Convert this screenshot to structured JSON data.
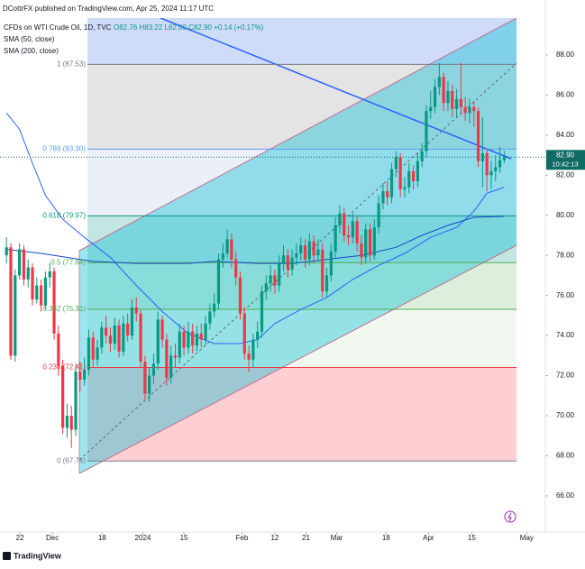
{
  "chart_data": {
    "type": "candlestick",
    "title": "DCottrFX published on TradingView.com, Apr 25, 2024 11:17 UTC",
    "symbol": "CFDs on WTI Crude Oil, 1D, TVC",
    "ohlc_text": "O82.76 H83.22 L82.60 C82.90 +0.14 (+0.17%)",
    "footer": "TradingView",
    "up_color": "#089981",
    "down_color": "#f23645",
    "xlim": [
      -1.5,
      124.5
    ],
    "ylim": [
      64.2,
      89.84
    ],
    "xticks": [
      {
        "value": 3.1,
        "label": "22"
      },
      {
        "value": 10.6,
        "label": "Dec"
      },
      {
        "value": 22.1,
        "label": "18"
      },
      {
        "value": 31.5,
        "label": "2024"
      },
      {
        "value": 41,
        "label": "15"
      },
      {
        "value": 54.4,
        "label": "Feb"
      },
      {
        "value": 62,
        "label": "12"
      },
      {
        "value": 69.2,
        "label": "21"
      },
      {
        "value": 76.3,
        "label": "Mar"
      },
      {
        "value": 87.7,
        "label": "18"
      },
      {
        "value": 97.5,
        "label": "Apr"
      },
      {
        "value": 107.5,
        "label": "15"
      },
      {
        "value": 120.2,
        "label": "May"
      }
    ],
    "yticks": [
      {
        "value": 88,
        "label": "88.00"
      },
      {
        "value": 86,
        "label": "86.00"
      },
      {
        "value": 84,
        "label": "84.00"
      },
      {
        "value": 82,
        "label": "82.00"
      },
      {
        "value": 80,
        "label": "80.00"
      },
      {
        "value": 78,
        "label": "78.00"
      },
      {
        "value": 76,
        "label": "76.00"
      },
      {
        "value": 74,
        "label": "74.00"
      },
      {
        "value": 72,
        "label": "72.00"
      },
      {
        "value": 70,
        "label": "70.00"
      },
      {
        "value": 68,
        "label": "68.00"
      },
      {
        "value": 66,
        "label": "66.00"
      }
    ],
    "open": [
      78.0,
      78.4,
      73.0,
      77.0,
      78.3,
      76.8,
      77.4,
      75.8,
      76.5,
      75.5,
      76.9,
      77.2,
      74.1,
      72.5,
      69.4,
      70.0,
      69.3,
      72.2,
      71.8,
      72.3,
      73.9,
      72.8,
      73.4,
      74.4,
      74.0,
      73.6,
      74.5,
      73.2,
      74.6,
      74.0,
      75.4,
      75.1,
      72.7,
      71.1,
      72.0,
      72.6,
      74.8,
      73.8,
      71.9,
      73.0,
      72.9,
      74.2,
      73.4,
      74.2,
      73.5,
      74.1,
      73.8,
      74.6,
      75.2,
      75.6,
      77.8,
      78.1,
      78.8,
      77.8,
      76.9,
      75.1,
      73.1,
      72.8,
      73.8,
      74.2,
      76.2,
      76.6,
      77.0,
      76.5,
      77.6,
      78.0,
      77.3,
      77.9,
      78.1,
      78.5,
      77.8,
      78.7,
      78.0,
      78.3,
      76.2,
      77.0,
      78.2,
      79.5,
      80.1,
      79.0,
      78.9,
      79.7,
      78.6,
      77.9,
      79.3,
      78.0,
      79.4,
      80.6,
      81.2,
      80.9,
      82.3,
      82.9,
      81.3,
      81.4,
      82.2,
      81.7,
      82.7,
      83.2,
      85.2,
      85.4,
      86.4,
      86.9,
      85.6,
      86.2,
      85.3,
      85.8,
      85.4,
      85.1,
      85.4,
      85.2,
      82.7,
      83.1,
      82.0,
      82.2,
      82.4,
      82.76
    ],
    "high": [
      78.9,
      78.6,
      77.3,
      78.6,
      78.5,
      77.8,
      77.6,
      76.9,
      76.8,
      77.2,
      77.6,
      77.4,
      74.5,
      72.8,
      70.6,
      70.5,
      72.6,
      72.7,
      72.9,
      74.3,
      74.2,
      73.8,
      74.7,
      75.0,
      74.4,
      74.9,
      74.8,
      75.0,
      75.1,
      75.8,
      75.9,
      75.3,
      73.0,
      72.4,
      73.1,
      75.2,
      75.0,
      74.1,
      73.5,
      73.6,
      74.6,
      74.5,
      74.7,
      74.6,
      74.5,
      74.6,
      75.0,
      75.6,
      76.1,
      78.1,
      78.6,
      79.3,
      79.1,
      78.2,
      77.2,
      75.4,
      73.5,
      74.1,
      74.7,
      76.5,
      77.0,
      77.5,
      77.3,
      78.0,
      78.5,
      78.3,
      78.3,
      78.6,
      78.9,
      78.8,
      79.1,
      79.0,
      78.8,
      78.6,
      77.4,
      78.6,
      79.9,
      80.5,
      80.4,
      79.5,
      80.1,
      80.0,
      79.0,
      79.6,
      79.6,
      79.8,
      81.0,
      81.6,
      81.7,
      82.6,
      83.2,
      83.1,
      81.9,
      82.6,
      82.5,
      83.1,
      83.6,
      85.5,
      86.2,
      86.8,
      87.6,
      87.1,
      86.7,
      86.5,
      86.3,
      87.6,
      85.9,
      85.8,
      85.7,
      85.4,
      84.9,
      83.3,
      82.7,
      83.0,
      83.4,
      83.22
    ],
    "low": [
      77.6,
      72.8,
      72.7,
      76.8,
      76.5,
      76.4,
      75.5,
      75.6,
      75.2,
      75.3,
      76.4,
      73.8,
      72.0,
      69.1,
      68.9,
      68.4,
      69.0,
      71.2,
      71.5,
      72.0,
      72.4,
      72.5,
      73.1,
      73.6,
      73.2,
      73.3,
      72.9,
      73.0,
      73.7,
      73.8,
      74.7,
      72.4,
      70.8,
      70.7,
      71.6,
      72.3,
      73.4,
      71.5,
      71.6,
      72.4,
      72.6,
      73.0,
      73.1,
      73.1,
      73.2,
      73.4,
      73.5,
      74.3,
      74.9,
      75.3,
      77.4,
      77.9,
      77.4,
      76.5,
      74.8,
      72.8,
      72.2,
      72.4,
      73.4,
      73.9,
      75.8,
      76.2,
      76.1,
      76.2,
      77.2,
      76.9,
      77.0,
      77.5,
      77.8,
      77.4,
      77.5,
      77.6,
      77.7,
      75.9,
      75.9,
      76.7,
      77.9,
      79.1,
      78.7,
      78.5,
      78.6,
      78.2,
      77.5,
      77.6,
      77.7,
      77.8,
      79.1,
      80.3,
      80.5,
      80.6,
      81.9,
      80.9,
      80.9,
      81.1,
      81.3,
      81.4,
      82.4,
      82.9,
      84.8,
      85.1,
      86.0,
      85.2,
      85.2,
      84.9,
      84.9,
      85.0,
      84.7,
      84.6,
      84.4,
      82.4,
      81.4,
      81.2,
      81.3,
      81.7,
      82.1,
      82.6
    ],
    "close": [
      78.4,
      73.0,
      77.0,
      78.3,
      76.8,
      77.4,
      75.8,
      76.5,
      75.5,
      76.9,
      77.2,
      74.1,
      72.5,
      69.4,
      70.0,
      69.3,
      72.2,
      71.8,
      72.3,
      73.9,
      72.8,
      73.4,
      74.4,
      74.0,
      73.6,
      74.5,
      73.2,
      74.6,
      74.0,
      75.4,
      75.1,
      72.7,
      71.1,
      72.0,
      72.6,
      74.8,
      73.8,
      71.9,
      73.0,
      72.9,
      74.2,
      73.4,
      74.2,
      73.5,
      74.1,
      73.8,
      74.6,
      75.2,
      75.6,
      77.8,
      78.1,
      78.8,
      77.8,
      76.9,
      75.1,
      73.1,
      72.8,
      73.8,
      74.2,
      76.2,
      76.6,
      77.0,
      76.5,
      77.6,
      78.0,
      77.3,
      77.9,
      78.1,
      78.5,
      77.8,
      78.7,
      78.0,
      78.3,
      76.2,
      77.0,
      78.2,
      79.5,
      80.1,
      79.0,
      78.9,
      79.7,
      78.6,
      77.9,
      79.3,
      78.0,
      79.4,
      80.6,
      81.2,
      80.9,
      82.3,
      82.9,
      81.3,
      81.4,
      82.2,
      81.7,
      82.7,
      83.2,
      85.2,
      85.4,
      86.4,
      86.9,
      85.6,
      86.2,
      85.3,
      85.8,
      85.4,
      85.1,
      85.4,
      85.2,
      82.7,
      83.1,
      82.0,
      82.2,
      82.4,
      82.76,
      82.9
    ],
    "series": [
      {
        "name": "SMA (50, close)",
        "color": "#2962ff",
        "x": [
          0,
          3,
          6,
          9,
          13,
          18,
          24,
          30,
          36,
          42,
          48,
          54,
          58,
          62,
          68,
          74,
          80,
          86,
          92,
          98,
          104,
          108,
          111,
          115
        ],
        "values": [
          85.1,
          84.3,
          82.6,
          81.0,
          79.8,
          78.9,
          77.9,
          76.5,
          75.2,
          74.1,
          73.6,
          73.6,
          73.8,
          74.6,
          75.3,
          75.9,
          76.8,
          77.5,
          78.1,
          78.9,
          79.4,
          80.2,
          81.1,
          81.4
        ]
      },
      {
        "name": "SMA (200, close)",
        "color": "#1848cc",
        "x": [
          0,
          8,
          20,
          30,
          42,
          48,
          58,
          66,
          74,
          82,
          90,
          96,
          102,
          108,
          115
        ],
        "values": [
          78.3,
          78.1,
          77.7,
          77.6,
          77.6,
          77.7,
          77.6,
          77.6,
          77.8,
          78.0,
          78.4,
          79.0,
          79.5,
          79.9,
          79.95
        ]
      }
    ],
    "fib_levels": [
      {
        "label": "1 (87.53)",
        "price": 87.53,
        "color": "#787b86"
      },
      {
        "label": "0.786 (83.30)",
        "price": 83.3,
        "color": "#5b9cf6"
      },
      {
        "label": "0.618 (79.97)",
        "price": 79.97,
        "color": "#089981"
      },
      {
        "label": "0.5 (77.64)",
        "price": 77.64,
        "color": "#4caf50"
      },
      {
        "label": "0.382 (75.31)",
        "price": 75.31,
        "color": "#4caf50"
      },
      {
        "label": "0.236 (72.41)",
        "price": 72.41,
        "color": "#f23645"
      },
      {
        "label": "0 (67.74)",
        "price": 67.74,
        "color": "#787b86"
      }
    ],
    "fib_band_colors": [
      "#9e9e9e",
      "#b3c7e6",
      "#26a69a",
      "#81c784",
      "#c8e6c9",
      "#f7525f"
    ],
    "last_price": {
      "value": 82.9,
      "label": "82.90",
      "countdown": "10:42:13",
      "color": "#0f6b63"
    }
  }
}
